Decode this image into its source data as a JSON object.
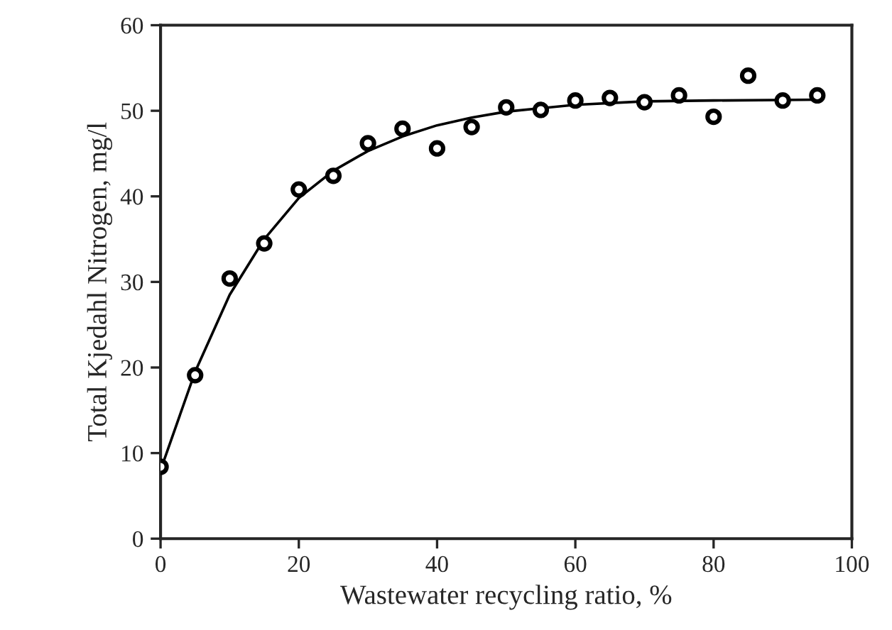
{
  "chart_data": {
    "type": "scatter",
    "xlabel": "Wastewater recycling ratio, %",
    "ylabel": "Total Kjedahl Nitrogen, mg/l",
    "xlim": [
      0,
      100
    ],
    "ylim": [
      0,
      60
    ],
    "xticks": [
      0,
      20,
      40,
      60,
      80,
      100
    ],
    "yticks": [
      0,
      10,
      20,
      30,
      40,
      50,
      60
    ],
    "grid": false,
    "legend": false,
    "series": [
      {
        "color": "#000000",
        "marker": "circle",
        "x": [
          0,
          5,
          10,
          15,
          20,
          25,
          30,
          35,
          40,
          45,
          50,
          55,
          60,
          65,
          70,
          75,
          80,
          85,
          90,
          95
        ],
        "values": [
          8.4,
          19.1,
          30.4,
          34.5,
          40.8,
          42.4,
          46.2,
          47.9,
          45.6,
          48.1,
          50.4,
          50.1,
          51.2,
          51.5,
          51.0,
          51.8,
          49.3,
          54.1,
          51.2,
          51.8
        ]
      },
      {
        "type": "line",
        "color": "#000000",
        "marker": "none",
        "line_style": "solid",
        "x": [
          0,
          5,
          10,
          15,
          20,
          25,
          30,
          35,
          40,
          45,
          50,
          60,
          70,
          80,
          95
        ],
        "values": [
          8,
          19.5,
          28.5,
          35,
          39.8,
          43,
          45.3,
          47,
          48.3,
          49.2,
          49.9,
          50.7,
          51.1,
          51.2,
          51.3
        ]
      }
    ]
  }
}
